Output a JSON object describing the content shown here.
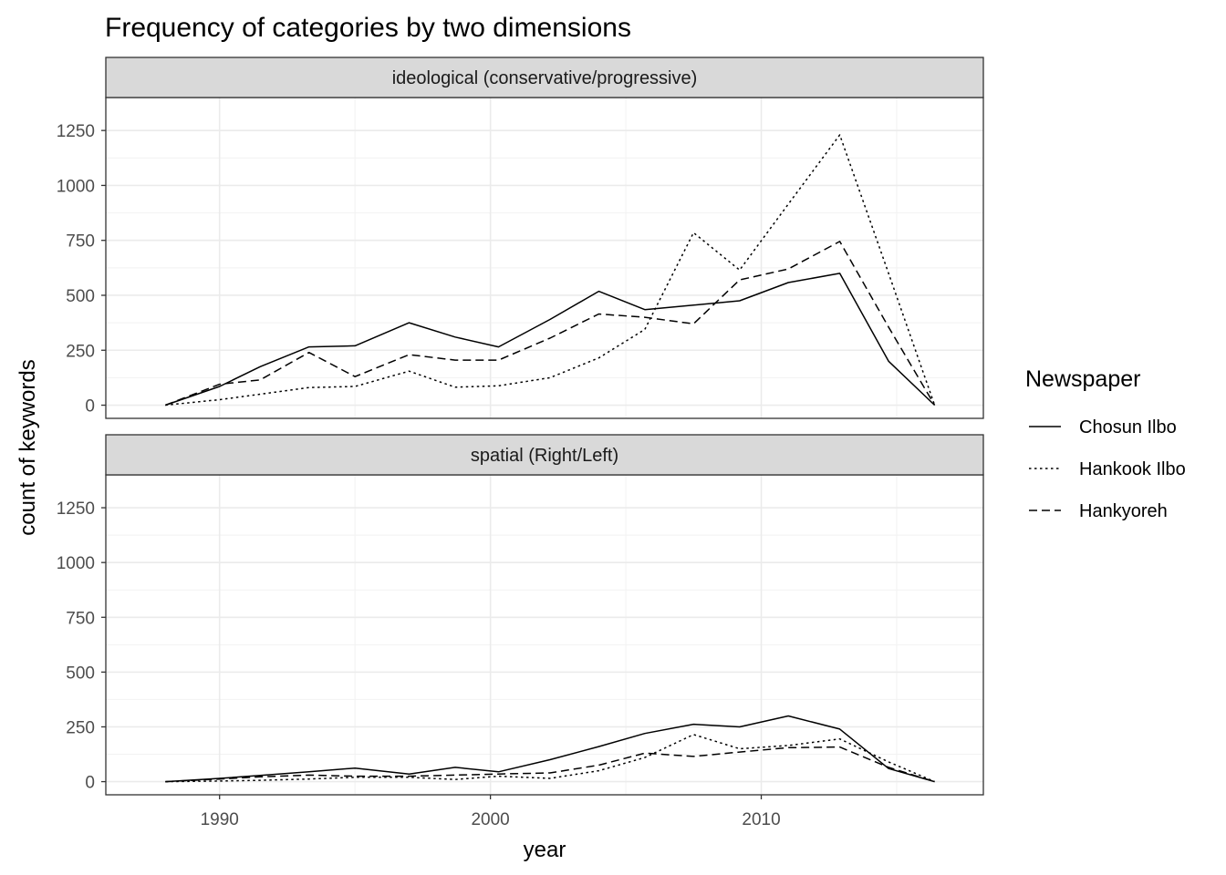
{
  "chart_data": {
    "type": "line",
    "title": "Frequency of categories by two dimensions",
    "xlabel": "year",
    "ylabel": "count of keywords",
    "xlim": [
      1985.8,
      2018.2
    ],
    "ylim": [
      -60,
      1400
    ],
    "x_ticks": [
      1990,
      2000,
      2010
    ],
    "y_ticks": [
      0,
      250,
      500,
      750,
      1000,
      1250
    ],
    "grid": true,
    "legend": {
      "title": "Newspaper",
      "position": "right",
      "entries": [
        {
          "name": "Chosun Ilbo",
          "dash": "solid"
        },
        {
          "name": "Hankook Ilbo",
          "dash": "dotted"
        },
        {
          "name": "Hankyoreh",
          "dash": "dashed"
        }
      ]
    },
    "facets": [
      {
        "label": "ideological (conservative/progressive)",
        "series": [
          {
            "name": "Chosun Ilbo",
            "x": [
              1988,
              1990,
              1991.5,
              1993.3,
              1995,
              1997,
              1998.7,
              2000.3,
              2002.2,
              2004,
              2005.7,
              2007.5,
              2009.2,
              2011,
              2012.9,
              2014.7,
              2016.4
            ],
            "y": [
              0,
              85,
              175,
              265,
              270,
              375,
              310,
              265,
              390,
              518,
              435,
              455,
              475,
              558,
              600,
              200,
              0
            ]
          },
          {
            "name": "Hankook Ilbo",
            "x": [
              1988,
              1990,
              1991.5,
              1993.3,
              1995,
              1997,
              1998.7,
              2000.3,
              2002.2,
              2004,
              2005.7,
              2007.5,
              2009.2,
              2011,
              2012.9,
              2014.7,
              2016.4
            ],
            "y": [
              0,
              25,
              50,
              80,
              85,
              155,
              82,
              88,
              125,
              215,
              345,
              785,
              615,
              915,
              1230,
              600,
              0
            ]
          },
          {
            "name": "Hankyoreh",
            "x": [
              1988,
              1990,
              1991.5,
              1993.3,
              1995,
              1997,
              1998.7,
              2000.3,
              2002.2,
              2004,
              2005.7,
              2007.5,
              2009.2,
              2011,
              2012.9,
              2014.7,
              2016.4
            ],
            "y": [
              0,
              95,
              115,
              240,
              130,
              230,
              205,
              205,
              305,
              415,
              400,
              370,
              570,
              620,
              745,
              355,
              0
            ]
          }
        ]
      },
      {
        "label": "spatial (Right/Left)",
        "series": [
          {
            "name": "Chosun Ilbo",
            "x": [
              1988,
              1990,
              1991.5,
              1993.3,
              1995,
              1997,
              1998.7,
              2000.3,
              2002.2,
              2004,
              2005.7,
              2007.5,
              2009.2,
              2011,
              2012.9,
              2014.7,
              2016.4
            ],
            "y": [
              0,
              15,
              28,
              45,
              62,
              35,
              65,
              45,
              100,
              160,
              220,
              262,
              250,
              300,
              240,
              60,
              0
            ]
          },
          {
            "name": "Hankook Ilbo",
            "x": [
              1988,
              1990,
              1991.5,
              1993.3,
              1995,
              1997,
              1998.7,
              2000.3,
              2002.2,
              2004,
              2005.7,
              2007.5,
              2009.2,
              2011,
              2012.9,
              2014.7,
              2016.4
            ],
            "y": [
              0,
              3,
              6,
              12,
              20,
              20,
              10,
              25,
              15,
              50,
              110,
              215,
              150,
              165,
              195,
              90,
              0
            ]
          },
          {
            "name": "Hankyoreh",
            "x": [
              1988,
              1990,
              1991.5,
              1993.3,
              1995,
              1997,
              1998.7,
              2000.3,
              2002.2,
              2004,
              2005.7,
              2007.5,
              2009.2,
              2011,
              2012.9,
              2014.7,
              2016.4
            ],
            "y": [
              0,
              12,
              22,
              30,
              25,
              25,
              30,
              35,
              40,
              75,
              130,
              115,
              135,
              155,
              158,
              65,
              0
            ]
          }
        ]
      }
    ]
  }
}
